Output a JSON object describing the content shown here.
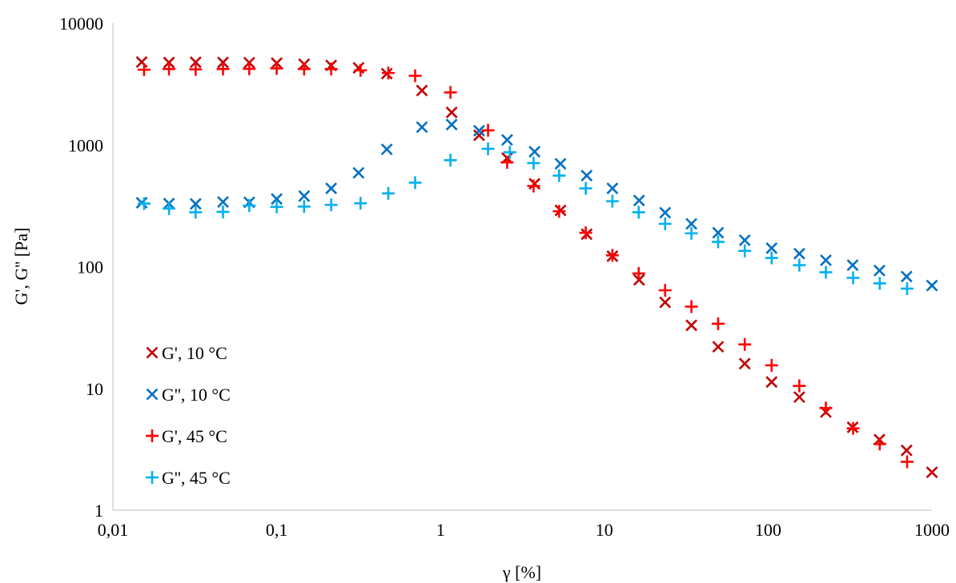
{
  "chart_data": {
    "type": "scatter",
    "title": "",
    "xlabel": "γ [%]",
    "ylabel": "G', G'' [Pa]",
    "x_scale": "log",
    "y_scale": "log",
    "xlim": [
      0.01,
      1000
    ],
    "ylim": [
      1,
      10000
    ],
    "x_ticks": [
      "0,01",
      "0,1",
      "1",
      "10",
      "100",
      "1000"
    ],
    "y_ticks": [
      "1",
      "10",
      "100",
      "1000",
      "10000"
    ],
    "grid": false,
    "legend_position": "bottom-left",
    "series": [
      {
        "name": "G', 10 °C",
        "marker": "x",
        "color": "#c00000",
        "points": [
          [
            0.015,
            4800
          ],
          [
            0.022,
            4750
          ],
          [
            0.032,
            4780
          ],
          [
            0.047,
            4760
          ],
          [
            0.068,
            4740
          ],
          [
            0.1,
            4700
          ],
          [
            0.147,
            4600
          ],
          [
            0.215,
            4500
          ],
          [
            0.316,
            4300
          ],
          [
            0.47,
            3850
          ],
          [
            0.77,
            2800
          ],
          [
            1.17,
            1850
          ],
          [
            1.72,
            1200
          ],
          [
            2.55,
            780
          ],
          [
            3.75,
            480
          ],
          [
            5.4,
            290
          ],
          [
            7.8,
            185
          ],
          [
            11.2,
            122
          ],
          [
            16.3,
            78
          ],
          [
            23.5,
            51
          ],
          [
            34,
            33
          ],
          [
            49.5,
            22
          ],
          [
            72,
            16
          ],
          [
            105,
            11.3
          ],
          [
            155,
            8.5
          ],
          [
            225,
            6.4
          ],
          [
            328,
            4.8
          ],
          [
            478,
            3.8
          ],
          [
            700,
            3.1
          ],
          [
            1000,
            2.05
          ]
        ]
      },
      {
        "name": "G'', 10 °C",
        "marker": "x",
        "color": "#0070c0",
        "points": [
          [
            0.015,
            335
          ],
          [
            0.022,
            330
          ],
          [
            0.032,
            328
          ],
          [
            0.047,
            340
          ],
          [
            0.068,
            338
          ],
          [
            0.1,
            360
          ],
          [
            0.147,
            380
          ],
          [
            0.215,
            440
          ],
          [
            0.316,
            590
          ],
          [
            0.47,
            920
          ],
          [
            0.77,
            1400
          ],
          [
            1.17,
            1470
          ],
          [
            1.72,
            1310
          ],
          [
            2.55,
            1100
          ],
          [
            3.75,
            880
          ],
          [
            5.4,
            700
          ],
          [
            7.8,
            560
          ],
          [
            11.2,
            440
          ],
          [
            16.3,
            350
          ],
          [
            23.5,
            278
          ],
          [
            34,
            225
          ],
          [
            49.5,
            190
          ],
          [
            72,
            165
          ],
          [
            105,
            142
          ],
          [
            155,
            128
          ],
          [
            225,
            113
          ],
          [
            328,
            103
          ],
          [
            478,
            93
          ],
          [
            700,
            83
          ],
          [
            1000,
            70
          ]
        ]
      },
      {
        "name": "G', 45 °C",
        "marker": "+",
        "color": "#ff0000",
        "points": [
          [
            0.0155,
            4150
          ],
          [
            0.022,
            4200
          ],
          [
            0.032,
            4180
          ],
          [
            0.047,
            4200
          ],
          [
            0.068,
            4220
          ],
          [
            0.1,
            4250
          ],
          [
            0.147,
            4200
          ],
          [
            0.215,
            4200
          ],
          [
            0.325,
            4100
          ],
          [
            0.48,
            3900
          ],
          [
            0.7,
            3700
          ],
          [
            1.15,
            2700
          ],
          [
            1.95,
            1320
          ],
          [
            2.55,
            720
          ],
          [
            3.7,
            460
          ],
          [
            5.3,
            285
          ],
          [
            7.7,
            190
          ],
          [
            11.2,
            124
          ],
          [
            16.2,
            88
          ],
          [
            23.5,
            64
          ],
          [
            34,
            47
          ],
          [
            49.5,
            34
          ],
          [
            72,
            23
          ],
          [
            105,
            15.5
          ],
          [
            155,
            10.5
          ],
          [
            225,
            6.9
          ],
          [
            330,
            4.7
          ],
          [
            480,
            3.5
          ],
          [
            705,
            2.5
          ]
        ]
      },
      {
        "name": "G'', 45 °C",
        "marker": "+",
        "color": "#00b0f0",
        "points": [
          [
            0.0155,
            330
          ],
          [
            0.022,
            300
          ],
          [
            0.032,
            280
          ],
          [
            0.047,
            282
          ],
          [
            0.068,
            318
          ],
          [
            0.1,
            310
          ],
          [
            0.147,
            312
          ],
          [
            0.215,
            322
          ],
          [
            0.325,
            332
          ],
          [
            0.48,
            400
          ],
          [
            0.7,
            490
          ],
          [
            1.15,
            750
          ],
          [
            1.95,
            930
          ],
          [
            2.65,
            870
          ],
          [
            3.7,
            710
          ],
          [
            5.3,
            560
          ],
          [
            7.7,
            440
          ],
          [
            11.2,
            345
          ],
          [
            16.2,
            280
          ],
          [
            23.5,
            225
          ],
          [
            34,
            188
          ],
          [
            49.5,
            160
          ],
          [
            72,
            135
          ],
          [
            105,
            118
          ],
          [
            155,
            103
          ],
          [
            225,
            90
          ],
          [
            330,
            81
          ],
          [
            480,
            73
          ],
          [
            705,
            66
          ]
        ]
      }
    ]
  }
}
